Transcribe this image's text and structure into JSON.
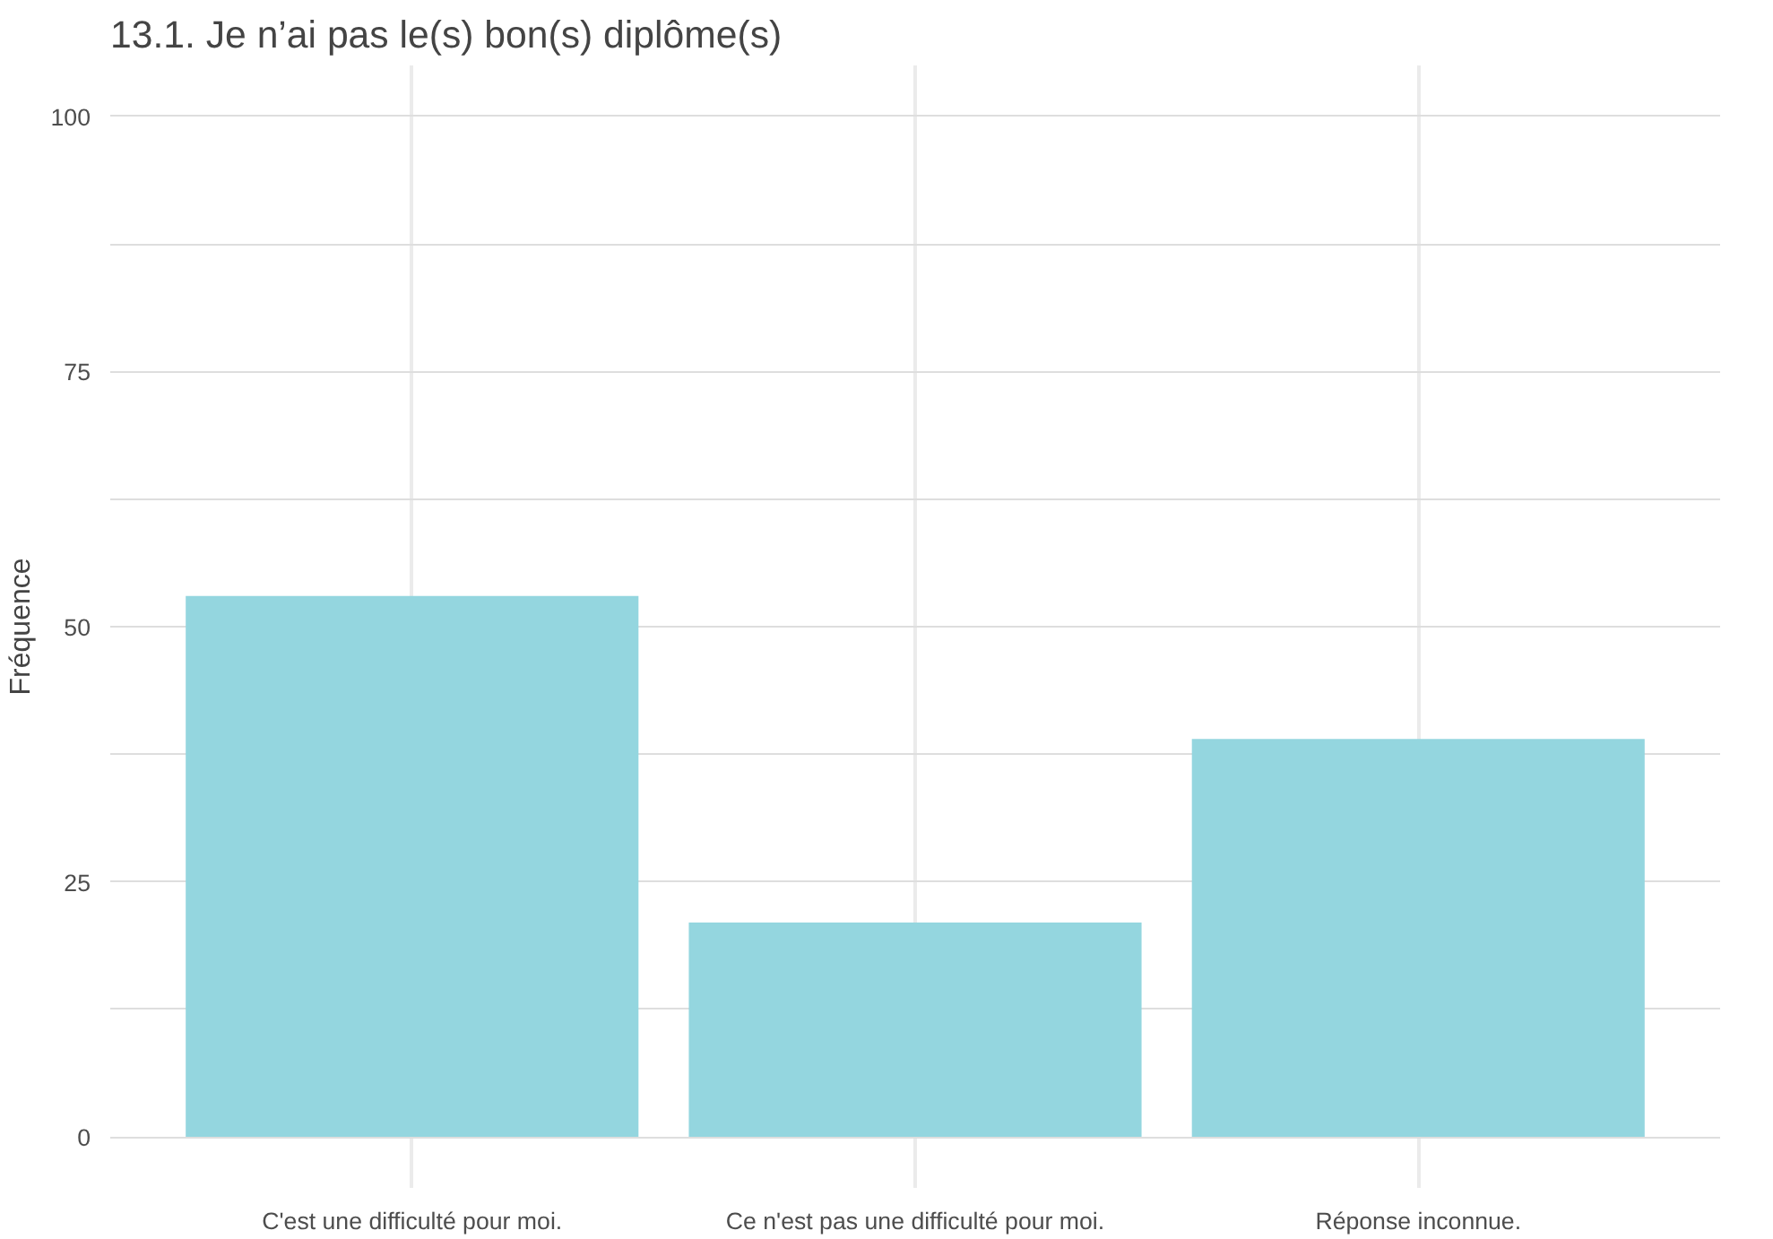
{
  "chart_data": {
    "type": "bar",
    "title": "13.1. Je n’ai pas le(s) bon(s) diplôme(s)",
    "ylabel": "Fréquence",
    "categories": [
      "C'est une difficulté pour moi.",
      "Ce n'est pas une difficulté pour moi.",
      "Réponse inconnue."
    ],
    "values": [
      53,
      21,
      39
    ],
    "color": "#94d6df",
    "ylim": [
      -5,
      105
    ],
    "yticks": [
      0,
      {
        "value": 12.5,
        "label": null
      },
      25,
      {
        "value": 37.5,
        "label": null
      },
      50,
      {
        "value": 62.5,
        "label": null
      },
      75,
      {
        "value": 87.5,
        "label": null
      },
      100
    ],
    "grid": true
  }
}
